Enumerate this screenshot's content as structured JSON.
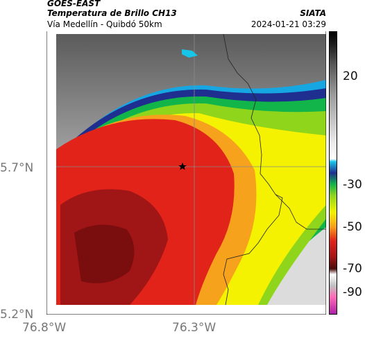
{
  "header": {
    "satellite": "GOES-EAST",
    "product": "Temperatura de Brillo CH13",
    "route": "Vía Medellín - Quibdó 50km",
    "source": "SIATA",
    "timestamp": "2024-01-21 03:29"
  },
  "axes": {
    "lat_ticks": [
      {
        "label": "5.7°N",
        "value": 5.7
      },
      {
        "label": "5.2°N",
        "value": 5.2
      }
    ],
    "lon_ticks": [
      {
        "label": "76.8°W",
        "value": -76.8
      },
      {
        "label": "76.3°W",
        "value": -76.3
      }
    ]
  },
  "colorbar": {
    "ticks": [
      {
        "label": "20",
        "value": 20
      },
      {
        "label": "-30",
        "value": -30
      },
      {
        "label": "-50",
        "value": -50
      },
      {
        "label": "-70",
        "value": -70
      },
      {
        "label": "-90",
        "value": -90
      }
    ]
  },
  "marker": {
    "icon": "star-icon",
    "lat": 5.7,
    "lon": -76.34
  }
}
